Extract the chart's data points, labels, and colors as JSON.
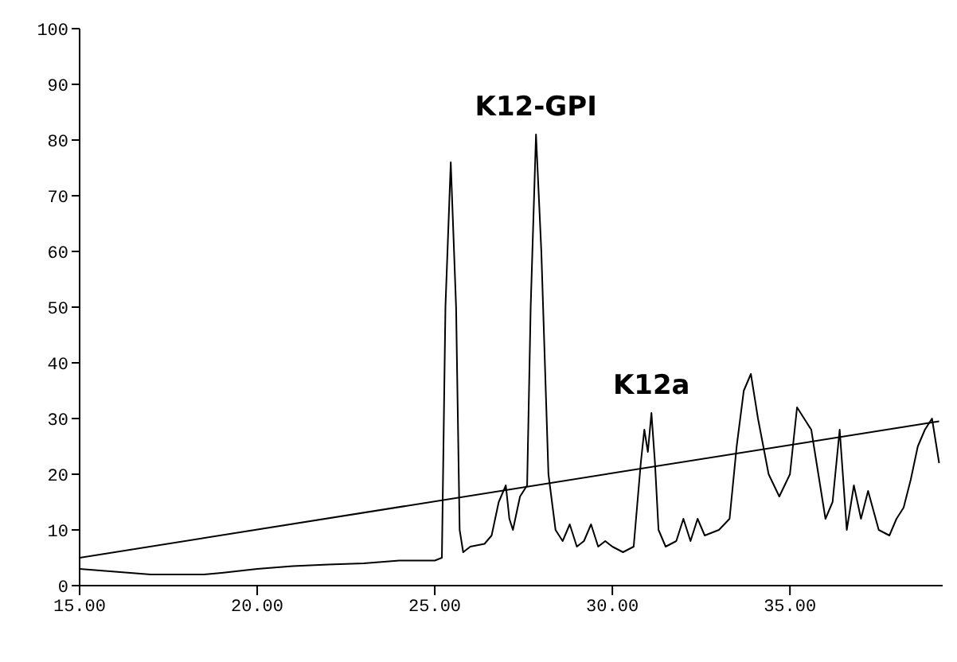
{
  "chart_data": {
    "type": "line",
    "xlim": [
      15,
      39.3
    ],
    "ylim": [
      0,
      100
    ],
    "xticks": [
      {
        "value": 15,
        "label": "15.00"
      },
      {
        "value": 20,
        "label": "20.00"
      },
      {
        "value": 25,
        "label": "25.00"
      },
      {
        "value": 30,
        "label": "30.00"
      },
      {
        "value": 35,
        "label": "35.00"
      }
    ],
    "yticks": [
      0,
      10,
      20,
      30,
      40,
      50,
      60,
      70,
      80,
      90,
      100
    ],
    "marker": "none",
    "line_style": "solid",
    "annotations": [
      {
        "text": "K12-GPI",
        "x": 27.85,
        "y": 81
      },
      {
        "text": "K12a",
        "x": 31.1,
        "y": 31
      }
    ],
    "series": [
      {
        "color": "#000000",
        "x": [
          15,
          16,
          17,
          18.5,
          19,
          20,
          21,
          22,
          23,
          24,
          25,
          25.2,
          25.3,
          25.45,
          25.6,
          25.7,
          25.8,
          26,
          26.4,
          26.6,
          26.8,
          27,
          27.1,
          27.2,
          27.4,
          27.6,
          27.7,
          27.85,
          28,
          28.2,
          28.4,
          28.6,
          28.8,
          29,
          29.2,
          29.4,
          29.6,
          29.8,
          30,
          30.3,
          30.6,
          30.8,
          30.9,
          31,
          31.1,
          31.2,
          31.3,
          31.5,
          31.8,
          32,
          32.2,
          32.4,
          32.6,
          33,
          33.3,
          33.5,
          33.7,
          33.9,
          34.1,
          34.4,
          34.7,
          35,
          35.2,
          35.4,
          35.6,
          35.8,
          36,
          36.2,
          36.4,
          36.6,
          36.8,
          37,
          37.2,
          37.5,
          37.8,
          38,
          38.2,
          38.4,
          38.6,
          38.8,
          39,
          39.2
        ],
        "values": [
          3,
          2.5,
          2,
          2,
          2.3,
          3,
          3.5,
          3.8,
          4,
          4.5,
          4.5,
          5,
          50,
          76,
          50,
          10,
          6,
          7,
          7.5,
          9,
          15,
          18,
          12,
          10,
          16,
          18,
          50,
          81,
          60,
          20,
          10,
          8,
          11,
          7,
          8,
          11,
          7,
          8,
          7,
          6,
          7,
          22,
          28,
          24,
          31,
          22,
          10,
          7,
          8,
          12,
          8,
          12,
          9,
          10,
          12,
          25,
          35,
          38,
          30,
          20,
          16,
          20,
          32,
          30,
          28,
          20,
          12,
          15,
          28,
          10,
          18,
          12,
          17,
          10,
          9,
          12,
          14,
          19,
          25,
          28,
          30,
          22
        ]
      },
      {
        "color": "#000000",
        "x": [
          15,
          39.2
        ],
        "values": [
          5,
          29.5
        ]
      }
    ]
  }
}
